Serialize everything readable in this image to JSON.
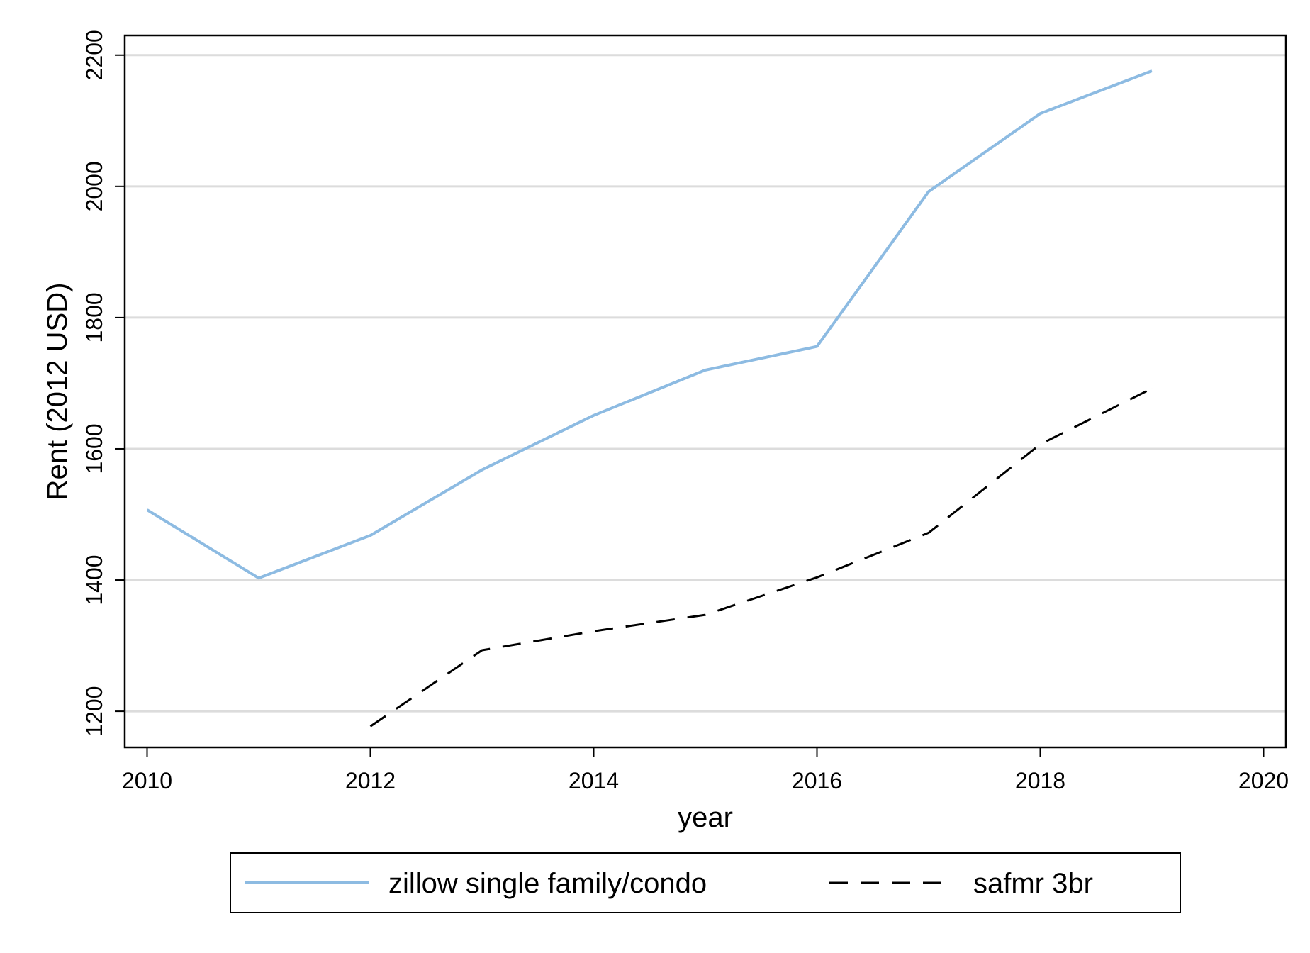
{
  "chart_data": {
    "type": "line",
    "xlabel": "year",
    "ylabel": "Rent (2012 USD)",
    "xlim": [
      2009.8,
      2020.2
    ],
    "ylim": [
      1145,
      2230
    ],
    "x_ticks": [
      2010,
      2012,
      2014,
      2016,
      2018,
      2020
    ],
    "y_ticks": [
      1200,
      1400,
      1600,
      1800,
      2000,
      2200
    ],
    "grid": "horizontal",
    "legend_position": "bottom",
    "series": [
      {
        "name": "zillow single family/condo",
        "color": "#8dbbe2",
        "style": "solid",
        "x": [
          2010,
          2011,
          2012,
          2013,
          2014,
          2015,
          2016,
          2017,
          2018,
          2019
        ],
        "y": [
          1507,
          1403,
          1468,
          1568,
          1651,
          1720,
          1756,
          1992,
          2111,
          2176
        ]
      },
      {
        "name": "safmr 3br",
        "color": "#000000",
        "style": "dashed",
        "x": [
          2012,
          2013,
          2014,
          2015,
          2016,
          2017,
          2018,
          2019
        ],
        "y": [
          1177,
          1293,
          1322,
          1347,
          1404,
          1472,
          1607,
          1692
        ]
      }
    ]
  }
}
